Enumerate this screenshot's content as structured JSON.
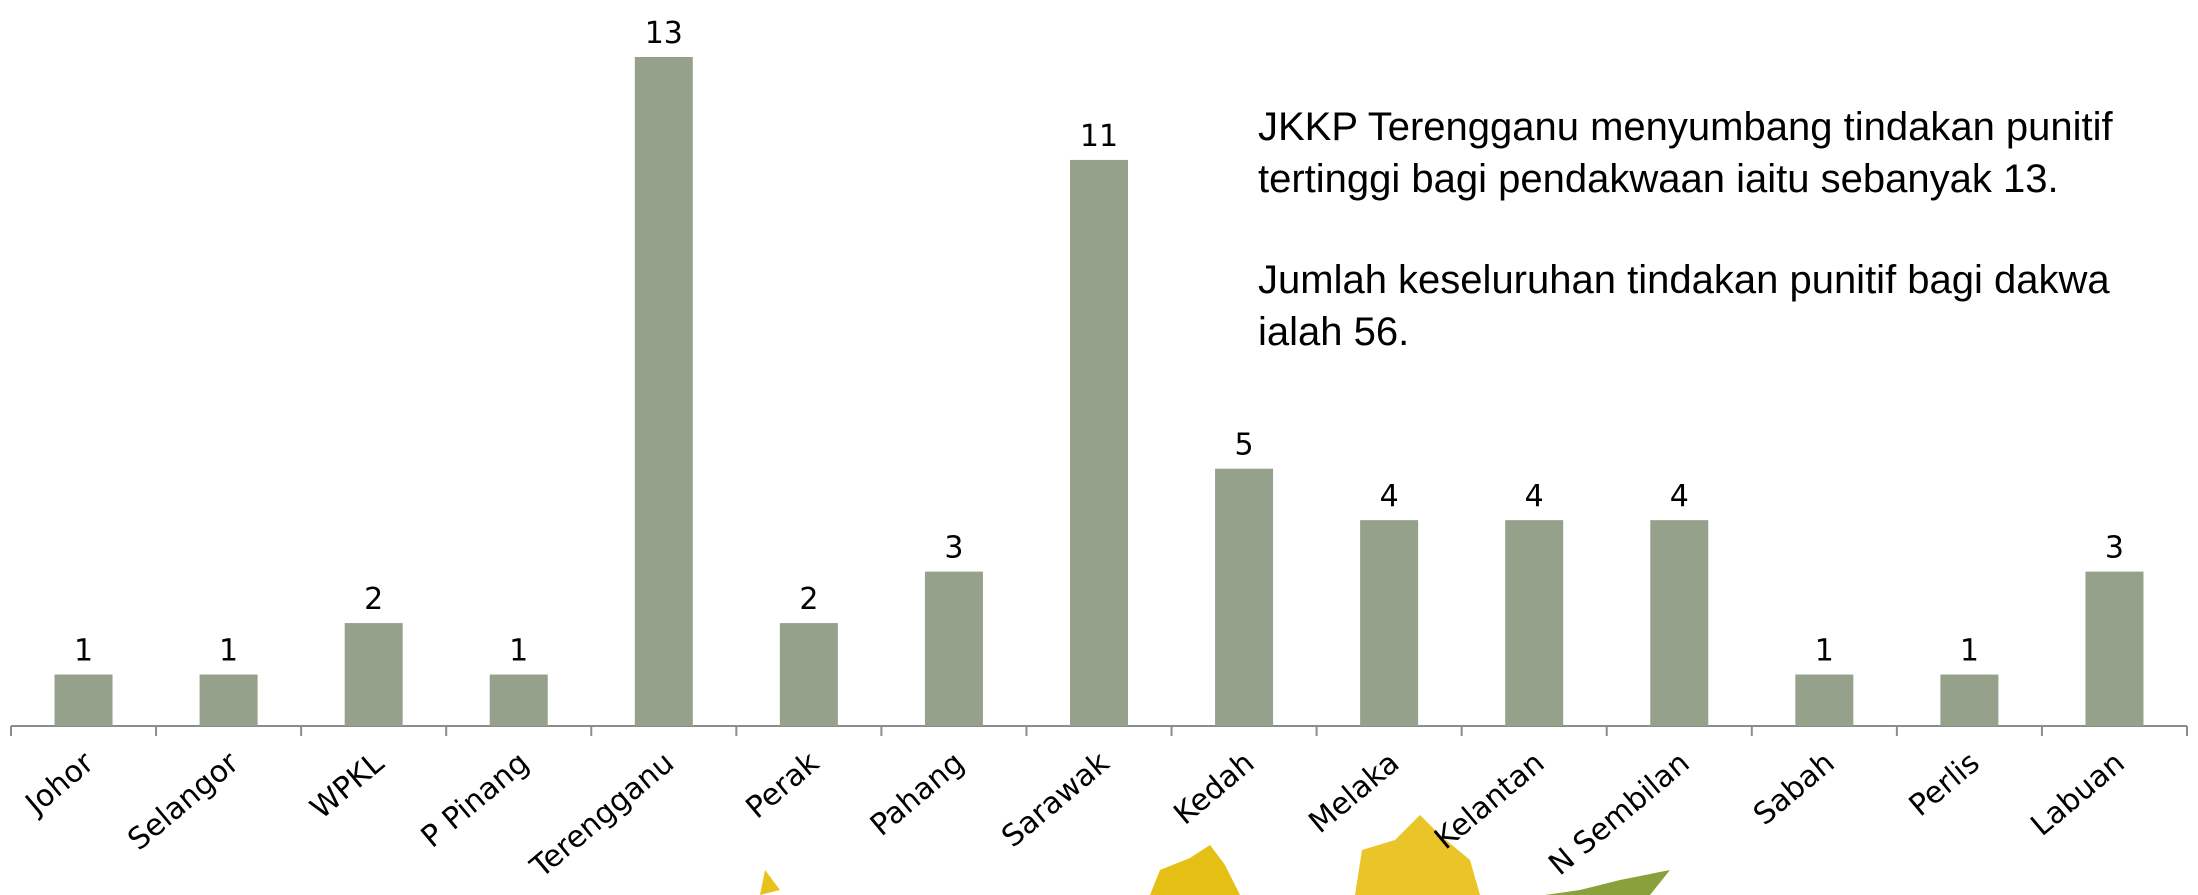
{
  "chart_data": {
    "type": "bar",
    "categories": [
      "Johor",
      "Selangor",
      "WPKL",
      "P Pinang",
      "Terengganu",
      "Perak",
      "Pahang",
      "Sarawak",
      "Kedah",
      "Melaka",
      "Kelantan",
      "N Sembilan",
      "Sabah",
      "Perlis",
      "Labuan"
    ],
    "values": [
      1,
      1,
      2,
      1,
      13,
      2,
      3,
      11,
      5,
      4,
      4,
      4,
      1,
      1,
      3
    ],
    "color": "#95a18a",
    "annotations": [
      [
        "JKKP Terengganu menyumbang tindakan punitif",
        "tertinggi bagi pendakwaan iaitu sebanyak 13."
      ],
      [
        "Jumlah keseluruhan tindakan punitif bagi dakwa",
        "ialah 56."
      ]
    ]
  }
}
